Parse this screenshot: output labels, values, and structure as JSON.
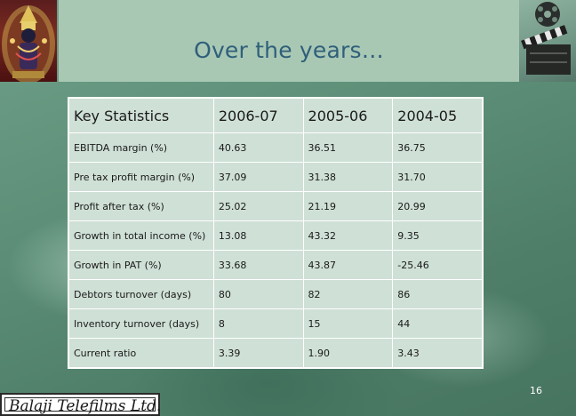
{
  "slide": {
    "title": "Over the years…",
    "page_number": "16"
  },
  "table": {
    "headers": [
      "Key Statistics",
      "2006-07",
      "2005-06",
      "2004-05"
    ],
    "rows": [
      [
        "EBITDA margin (%)",
        "40.63",
        "36.51",
        "36.75"
      ],
      [
        "Pre tax profit margin (%)",
        "37.09",
        "31.38",
        "31.70"
      ],
      [
        "Profit after tax (%)",
        "25.02",
        "21.19",
        "20.99"
      ],
      [
        "Growth in total income (%)",
        "13.08",
        "43.32",
        "9.35"
      ],
      [
        "Growth in PAT (%)",
        "33.68",
        "43.87",
        "-25.46"
      ],
      [
        "Debtors turnover (days)",
        "80",
        "82",
        "86"
      ],
      [
        "Inventory turnover (days)",
        "8",
        "15",
        "44"
      ],
      [
        "Current ratio",
        "3.39",
        "1.90",
        "3.43"
      ]
    ]
  },
  "footer": {
    "logo_text": "Balaji Telefilms Ltd."
  },
  "colors": {
    "background": "#5f917a",
    "header_band": "#a9c8b4",
    "title": "#2f5f7a",
    "table_fill": "#cfe0d6",
    "table_border": "#ffffff"
  }
}
